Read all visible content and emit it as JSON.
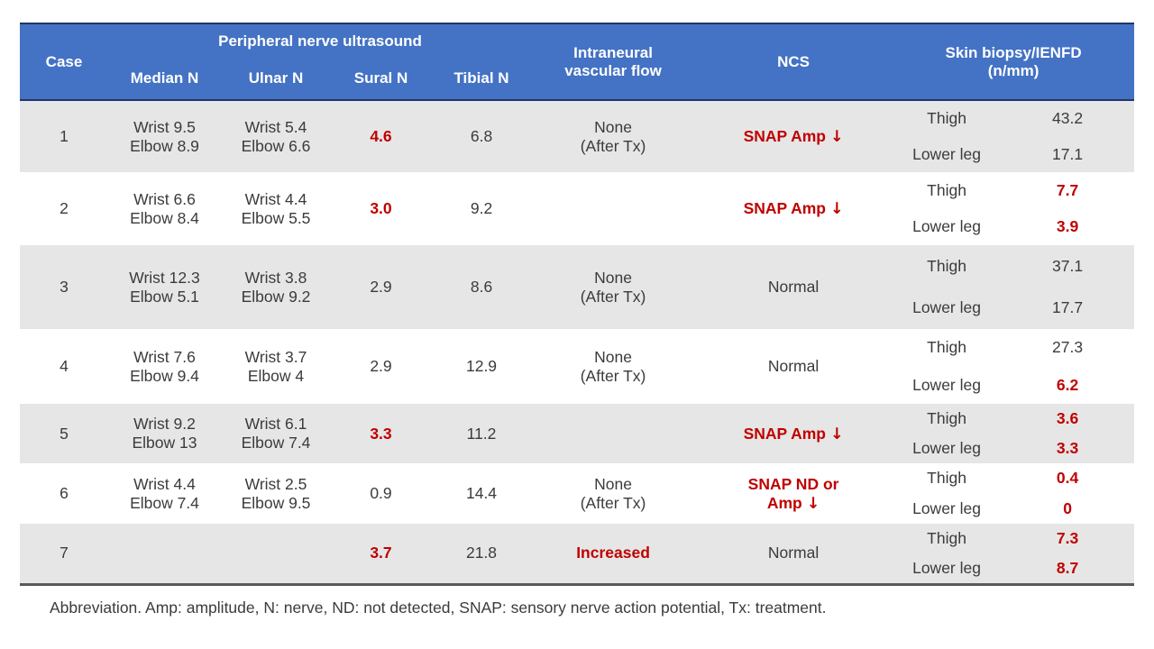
{
  "colors": {
    "header_bg": "#4472C4",
    "stripe_row_bg": "#E7E6E6",
    "highlight_red": "#C00000",
    "text": "#3B3B3B"
  },
  "table": {
    "header": {
      "case": "Case",
      "ultrasound_group": "Peripheral nerve ultrasound",
      "ultrasound_cols": [
        "Median N",
        "Ulnar N",
        "Sural N",
        "Tibial N"
      ],
      "flow_lines": [
        "Intraneural",
        "vascular flow"
      ],
      "ncs": "NCS",
      "biopsy_lines": [
        "Skin biopsy/IENFD",
        "(n/mm)"
      ]
    },
    "rows": [
      {
        "case": "1",
        "median": [
          "Wrist 9.5",
          "Elbow 8.9"
        ],
        "ulnar": [
          "Wrist 5.4",
          "Elbow 6.6"
        ],
        "sural": {
          "text": "4.6",
          "red": true
        },
        "tibial": {
          "text": "6.8",
          "red": false
        },
        "flow": {
          "lines": [
            "None",
            "(After Tx)"
          ],
          "red": false
        },
        "ncs": {
          "lines": [
            "SNAP Amp ↓"
          ],
          "red": true
        },
        "biopsy": [
          {
            "site": "Thigh",
            "value": "43.2",
            "red": false
          },
          {
            "site": "Lower leg",
            "value": "17.1",
            "red": false
          }
        ]
      },
      {
        "case": "2",
        "median": [
          "Wrist 6.6",
          "Elbow 8.4"
        ],
        "ulnar": [
          "Wrist 4.4",
          "Elbow 5.5"
        ],
        "sural": {
          "text": "3.0",
          "red": true
        },
        "tibial": {
          "text": "9.2",
          "red": false
        },
        "flow": {
          "lines": [],
          "red": false
        },
        "ncs": {
          "lines": [
            "SNAP Amp ↓"
          ],
          "red": true
        },
        "biopsy": [
          {
            "site": "Thigh",
            "value": "7.7",
            "red": true
          },
          {
            "site": "Lower leg",
            "value": "3.9",
            "red": true
          }
        ]
      },
      {
        "case": "3",
        "median": [
          "Wrist 12.3",
          "Elbow 5.1"
        ],
        "ulnar": [
          "Wrist 3.8",
          "Elbow 9.2"
        ],
        "sural": {
          "text": "2.9",
          "red": false
        },
        "tibial": {
          "text": "8.6",
          "red": false
        },
        "flow": {
          "lines": [
            "None",
            "(After Tx)"
          ],
          "red": false
        },
        "ncs": {
          "lines": [
            "Normal"
          ],
          "red": false
        },
        "biopsy": [
          {
            "site": "Thigh",
            "value": "37.1",
            "red": false
          },
          {
            "site": "Lower leg",
            "value": "17.7",
            "red": false
          }
        ]
      },
      {
        "case": "4",
        "median": [
          "Wrist 7.6",
          "Elbow 9.4"
        ],
        "ulnar": [
          "Wrist 3.7",
          "Elbow 4"
        ],
        "sural": {
          "text": "2.9",
          "red": false
        },
        "tibial": {
          "text": "12.9",
          "red": false
        },
        "flow": {
          "lines": [
            "None",
            "(After Tx)"
          ],
          "red": false
        },
        "ncs": {
          "lines": [
            "Normal"
          ],
          "red": false
        },
        "biopsy": [
          {
            "site": "Thigh",
            "value": "27.3",
            "red": false
          },
          {
            "site": "Lower leg",
            "value": "6.2",
            "red": true
          }
        ]
      },
      {
        "case": "5",
        "median": [
          "Wrist 9.2",
          "Elbow 13"
        ],
        "ulnar": [
          "Wrist 6.1",
          "Elbow 7.4"
        ],
        "sural": {
          "text": "3.3",
          "red": true
        },
        "tibial": {
          "text": "11.2",
          "red": false
        },
        "flow": {
          "lines": [],
          "red": false
        },
        "ncs": {
          "lines": [
            "SNAP Amp ↓"
          ],
          "red": true
        },
        "biopsy": [
          {
            "site": "Thigh",
            "value": "3.6",
            "red": true
          },
          {
            "site": "Lower leg",
            "value": "3.3",
            "red": true
          }
        ]
      },
      {
        "case": "6",
        "median": [
          "Wrist 4.4",
          "Elbow 7.4"
        ],
        "ulnar": [
          "Wrist 2.5",
          "Elbow 9.5"
        ],
        "sural": {
          "text": "0.9",
          "red": false
        },
        "tibial": {
          "text": "14.4",
          "red": false
        },
        "flow": {
          "lines": [
            "None",
            "(After Tx)"
          ],
          "red": false
        },
        "ncs": {
          "lines": [
            "SNAP ND or",
            "Amp ↓"
          ],
          "red": true
        },
        "biopsy": [
          {
            "site": "Thigh",
            "value": "0.4",
            "red": true
          },
          {
            "site": "Lower leg",
            "value": "0",
            "red": true
          }
        ]
      },
      {
        "case": "7",
        "median": [],
        "ulnar": [],
        "sural": {
          "text": "3.7",
          "red": true
        },
        "tibial": {
          "text": "21.8",
          "red": false
        },
        "flow": {
          "lines": [
            "Increased"
          ],
          "red": true
        },
        "ncs": {
          "lines": [
            "Normal"
          ],
          "red": false
        },
        "biopsy": [
          {
            "site": "Thigh",
            "value": "7.3",
            "red": true
          },
          {
            "site": "Lower leg",
            "value": "8.7",
            "red": true
          }
        ]
      }
    ]
  },
  "footer": "Abbreviation. Amp: amplitude, N: nerve, ND: not detected, SNAP: sensory nerve action potential, Tx: treatment."
}
